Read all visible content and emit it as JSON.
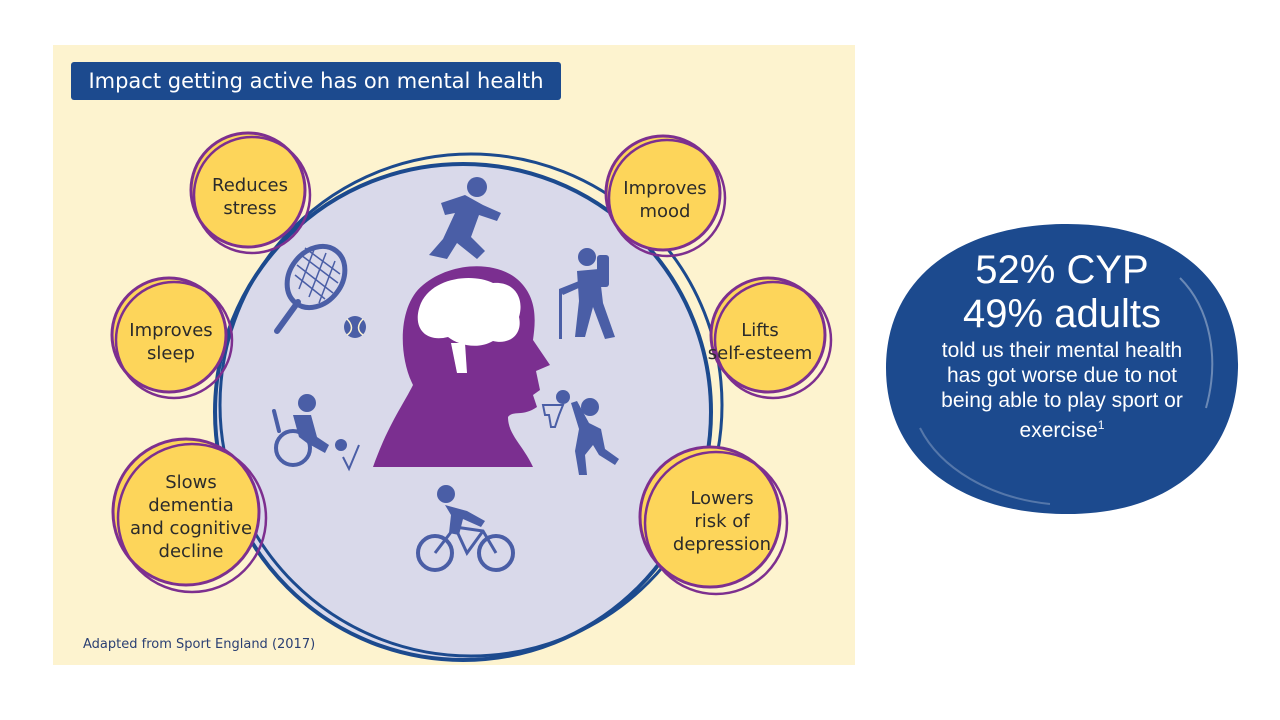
{
  "infographic": {
    "title": "Impact getting active has on mental health",
    "benefits": [
      {
        "id": "stress",
        "lines": [
          "Reduces",
          "stress"
        ]
      },
      {
        "id": "mood",
        "lines": [
          "Improves",
          "mood"
        ]
      },
      {
        "id": "sleep",
        "lines": [
          "Improves",
          "sleep"
        ]
      },
      {
        "id": "self-esteem",
        "lines": [
          "Lifts",
          "self-esteem"
        ]
      },
      {
        "id": "dementia",
        "lines": [
          "Slows",
          "dementia",
          "and cognitive",
          "decline"
        ]
      },
      {
        "id": "depression",
        "lines": [
          "Lowers",
          "risk of",
          "depression"
        ]
      }
    ],
    "caption": "Adapted from Sport England (2017)",
    "icons": [
      "running-person-icon",
      "hiker-icon",
      "tennis-racket-icon",
      "tennis-ball-icon",
      "head-brain-icon",
      "basketball-player-icon",
      "wheelchair-athlete-icon",
      "cyclist-icon"
    ]
  },
  "stat": {
    "line1": "52% CYP",
    "line2": "49% adults",
    "body": "told us their mental health has got worse due to not being able to play sport or exercise",
    "footnote": "1"
  },
  "colors": {
    "panel_bg": "#fdf3cf",
    "navy": "#1c4a8e",
    "bubble_yellow": "#fdd55a",
    "bubble_ring": "#7d2f8f",
    "circle_fill": "#d9d9ea",
    "icon_blue": "#4a5ea6",
    "brain_purple": "#7b2f90"
  }
}
